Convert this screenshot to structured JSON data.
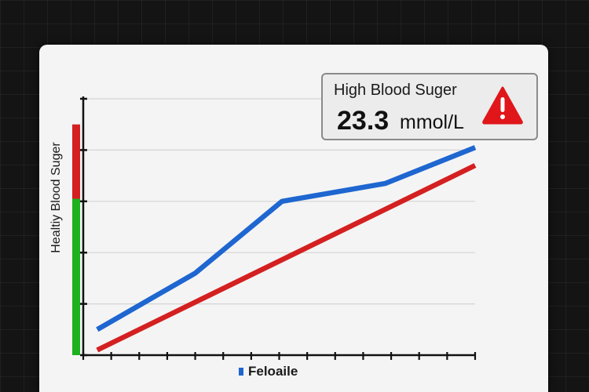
{
  "chart_data": {
    "type": "line",
    "title": "",
    "xlabel": "",
    "ylabel": "Healtiy Blood Suger",
    "x": [
      0,
      1,
      2,
      3,
      4,
      5,
      6,
      7,
      8,
      9,
      10,
      11,
      12,
      13,
      14
    ],
    "xlim": [
      0,
      14
    ],
    "ylim": [
      0,
      5
    ],
    "grid": true,
    "legend_position": "bottom",
    "series": [
      {
        "name": "Feloaile",
        "color": "#1e66d0",
        "points": [
          [
            0.5,
            0.5
          ],
          [
            4,
            1.6
          ],
          [
            7.1,
            3.0
          ],
          [
            10.8,
            3.35
          ],
          [
            14,
            4.05
          ]
        ]
      },
      {
        "color": "#d42020",
        "points": [
          [
            0.5,
            0.1
          ],
          [
            14,
            3.7
          ]
        ]
      }
    ],
    "range_bar": {
      "healthy_range": [
        0,
        3.05
      ],
      "high_range": [
        3.05,
        4.5
      ],
      "healthy_color": "#1db11d",
      "high_color": "#d42020"
    }
  },
  "alert": {
    "title": "High Blood Suger",
    "value": "23.3",
    "unit": "mmol/L",
    "icon": "warning-triangle-icon",
    "icon_color": "#e0161a"
  }
}
